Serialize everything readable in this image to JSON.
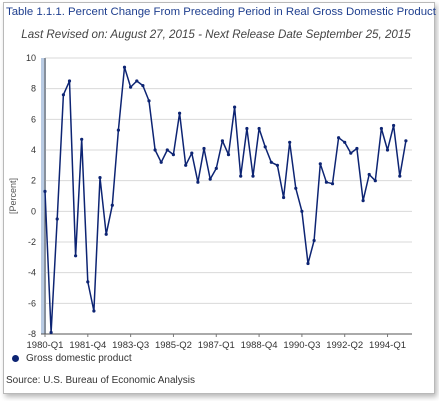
{
  "colors": {
    "series": "#0d2473",
    "title": "#1f3f8f",
    "grid": "#d9d9d9",
    "recession_band": "#b9cbe3"
  },
  "chart_data": {
    "type": "line",
    "title": "Table 1.1.1. Percent Change From Preceding Period in Real Gross Domestic Product",
    "subtitle": "Last Revised on: August 27, 2015 - Next Release Date September 25, 2015",
    "ylabel": "[Percent]",
    "xlabel": "",
    "ylim": [
      -8,
      10
    ],
    "yticks": [
      -8,
      -6,
      -4,
      -2,
      0,
      2,
      4,
      6,
      8,
      10
    ],
    "x_start": "1980-Q1",
    "x_end": "1995-Q1",
    "xtick_labels": [
      "1980-Q1",
      "1981-Q4",
      "1983-Q3",
      "1985-Q2",
      "1987-Q1",
      "1988-Q4",
      "1990-Q3",
      "1992-Q2",
      "1994-Q1"
    ],
    "grid": true,
    "legend_position": "bottom-left",
    "series": [
      {
        "name": "Gross domestic product",
        "values": [
          1.3,
          -7.9,
          -0.5,
          7.6,
          8.5,
          -2.9,
          4.7,
          -4.6,
          -6.5,
          2.2,
          -1.5,
          0.4,
          5.3,
          9.4,
          8.1,
          8.5,
          8.2,
          7.2,
          4.0,
          3.2,
          4.0,
          3.7,
          6.4,
          3.0,
          3.8,
          1.9,
          4.1,
          2.1,
          2.8,
          4.6,
          3.7,
          6.8,
          2.3,
          5.4,
          2.3,
          5.4,
          4.2,
          3.2,
          3.0,
          0.9,
          4.5,
          1.5,
          0.0,
          -3.4,
          -1.9,
          3.1,
          1.9,
          1.8,
          4.8,
          4.5,
          3.8,
          4.1,
          0.7,
          2.4,
          2.0,
          5.4,
          4.0,
          5.6,
          2.3,
          4.6
        ]
      }
    ]
  },
  "legend": {
    "label": "Gross domestic product"
  },
  "source": "Source: U.S. Bureau of Economic  Analysis"
}
